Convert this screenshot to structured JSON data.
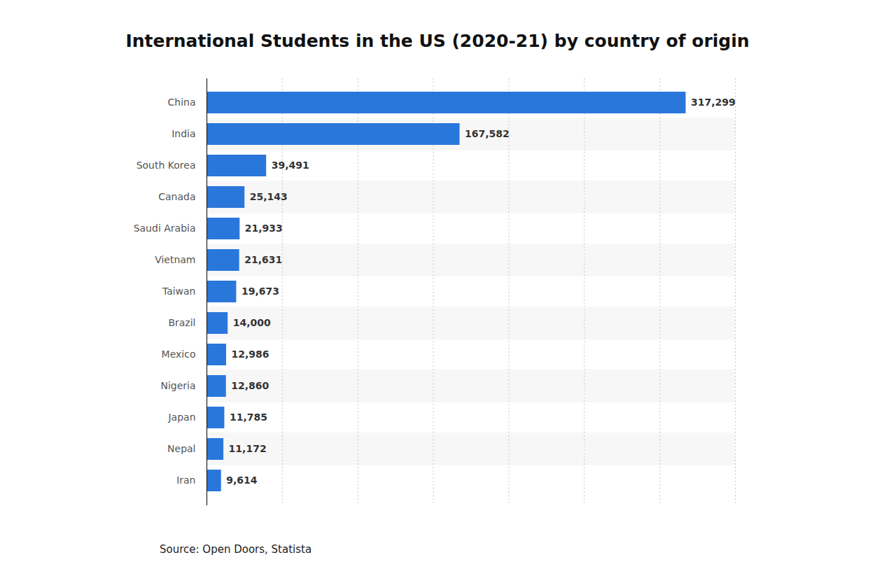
{
  "chart_data": {
    "type": "bar",
    "orientation": "horizontal",
    "title": "International Students in the US (2020-21) by country of origin",
    "caption": "Source: Open Doors, Statista",
    "categories": [
      "China",
      "India",
      "South Korea",
      "Canada",
      "Saudi Arabia",
      "Vietnam",
      "Taiwan",
      "Brazil",
      "Mexico",
      "Nigeria",
      "Japan",
      "Nepal",
      "Iran"
    ],
    "values": [
      317299,
      167582,
      39491,
      25143,
      21933,
      21631,
      19673,
      14000,
      12986,
      12860,
      11785,
      11172,
      9614
    ],
    "value_labels": [
      "317,299",
      "167,582",
      "39,491",
      "25,143",
      "21,933",
      "21,631",
      "19,673",
      "14,000",
      "12,986",
      "12,860",
      "11,785",
      "11,172",
      "9,614"
    ],
    "color": "#2a77dc",
    "xlim": [
      0,
      350000
    ],
    "xticks": [
      0,
      50000,
      100000,
      150000,
      200000,
      250000,
      300000,
      350000
    ],
    "grid": true,
    "data_labels": true,
    "tick_labels": "y"
  }
}
